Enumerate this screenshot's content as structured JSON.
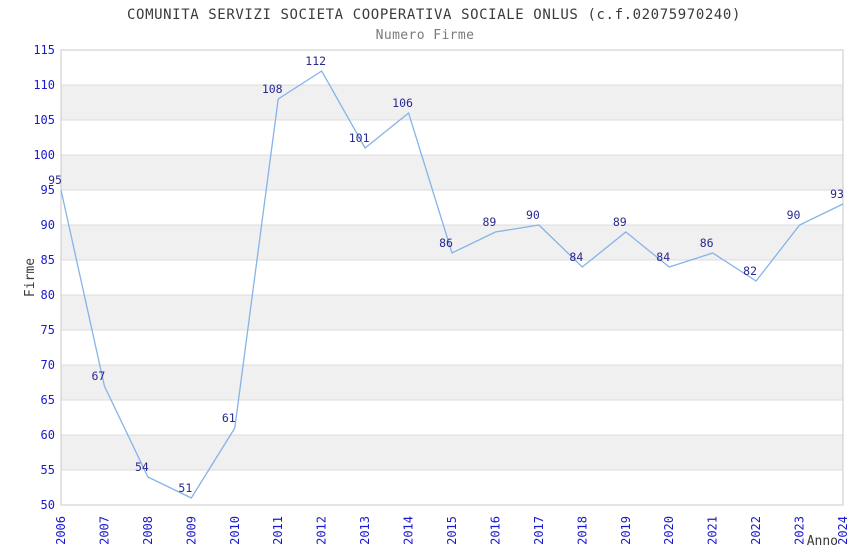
{
  "chart_data": {
    "type": "line",
    "title": "COMUNITA SERVIZI SOCIETA COOPERATIVA SOCIALE ONLUS (c.f.02075970240)",
    "subtitle": "Numero Firme",
    "xlabel": "Anno",
    "ylabel": "Firme",
    "x": [
      2006,
      2007,
      2008,
      2009,
      2010,
      2011,
      2012,
      2013,
      2014,
      2015,
      2016,
      2017,
      2018,
      2019,
      2020,
      2021,
      2022,
      2023,
      2024
    ],
    "series": [
      {
        "name": "Numero Firme",
        "values": [
          95,
          67,
          54,
          51,
          61,
          108,
          112,
          101,
          106,
          86,
          89,
          90,
          84,
          89,
          84,
          86,
          82,
          90,
          93
        ]
      }
    ],
    "ylim": [
      50,
      115
    ],
    "ytick_step": 5,
    "grid": true,
    "legend_position": "none",
    "band_pattern": "alternating-horizontal",
    "colors": {
      "line": "#84b4e8",
      "tick_label": "#1a1acd",
      "data_label": "#29298f",
      "band": "#f0f0f0",
      "gridline": "#dcdcdc",
      "plot_border": "#c9c9c9",
      "title": "#3a3a3a",
      "subtitle": "#7a7a7a",
      "axis_title": "#3a3a3a",
      "plot_background": "#ffffff"
    }
  }
}
